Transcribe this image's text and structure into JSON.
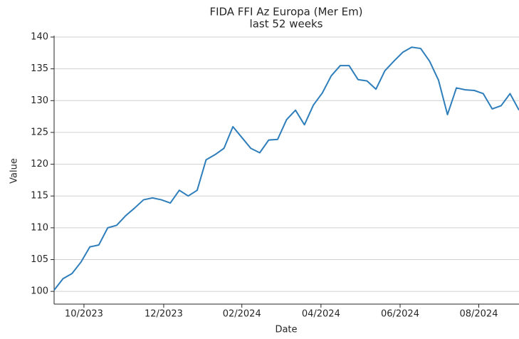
{
  "chart_data": {
    "type": "line",
    "title": "FIDA FFI Az Europa (Mer Em)",
    "subtitle": "last 52 weeks",
    "x_label": "Date",
    "y_label": "Value",
    "x": [
      0,
      1,
      2,
      3,
      4,
      5,
      6,
      7,
      8,
      9,
      10,
      11,
      12,
      13,
      14,
      15,
      16,
      17,
      18,
      19,
      20,
      21,
      22,
      23,
      24,
      25,
      26,
      27,
      28,
      29,
      30,
      31,
      32,
      33,
      34,
      35,
      36,
      37,
      38,
      39,
      40,
      41,
      42,
      43,
      44,
      45,
      46,
      47,
      48,
      49,
      50,
      51,
      52
    ],
    "series": [
      {
        "name": "Value",
        "color": "#2e7ebb",
        "values": [
          100.2,
          102.0,
          102.8,
          104.6,
          107.0,
          107.3,
          110.0,
          110.4,
          111.9,
          113.1,
          114.4,
          114.7,
          114.4,
          113.9,
          115.9,
          115.0,
          115.9,
          120.7,
          121.5,
          122.5,
          125.9,
          124.2,
          122.5,
          121.8,
          123.8,
          123.9,
          127.0,
          128.5,
          126.2,
          129.3,
          131.2,
          133.9,
          135.5,
          135.5,
          133.3,
          133.1,
          131.8,
          134.7,
          136.2,
          137.6,
          138.4,
          138.2,
          136.2,
          133.2,
          127.8,
          132.0,
          131.7,
          131.6,
          131.1,
          128.7,
          129.2,
          131.1,
          128.5
        ]
      }
    ],
    "xlim": [
      0,
      52
    ],
    "xticks": [
      {
        "value": 3.34,
        "label": "10/2023"
      },
      {
        "value": 12.26,
        "label": "12/2023"
      },
      {
        "value": 21.0,
        "label": "02/2024"
      },
      {
        "value": 29.85,
        "label": "04/2024"
      },
      {
        "value": 38.7,
        "label": "06/2024"
      },
      {
        "value": 47.5,
        "label": "08/2024"
      }
    ],
    "ylim": [
      98,
      140
    ],
    "yticks": [
      100,
      105,
      110,
      115,
      120,
      125,
      130,
      135,
      140
    ],
    "grid": true
  }
}
